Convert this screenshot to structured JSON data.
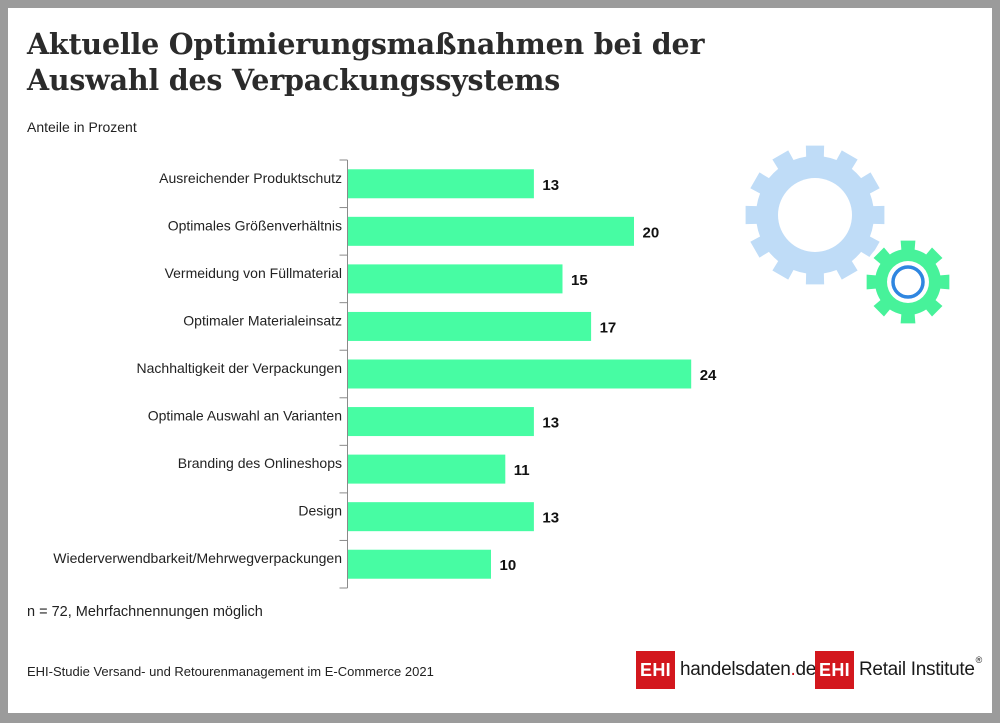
{
  "header": {
    "title_line1": "Aktuelle Optimierungsmaßnahmen bei der",
    "title_line2": "Auswahl des Verpackungssystems",
    "subtitle": "Anteile in Prozent"
  },
  "footer": {
    "note": "n = 72, Mehrfachnennungen möglich",
    "source": "EHI-Studie Versand- und Retourenmanagement im E-Commerce 2021",
    "logo1": {
      "badge": "EHI",
      "text_before_dot": "handelsdaten",
      "dot": ".",
      "text_after_dot": "de"
    },
    "logo2": {
      "badge": "EHI",
      "text": "Retail Institute",
      "registered": "®"
    }
  },
  "decor": {
    "large_gear_icon": "gear-icon",
    "small_gear_icon": "gear-icon"
  },
  "colors": {
    "bar": "#47fca3",
    "axis": "#8a8a8a",
    "large_gear": "#bfdcf7",
    "small_gear": "#47f29a",
    "small_gear_ring": "#2f86e0",
    "brand_red": "#d3171d"
  },
  "chart_data": {
    "type": "bar",
    "orientation": "horizontal",
    "title": "Aktuelle Optimierungsmaßnahmen bei der Auswahl des Verpackungssystems",
    "subtitle": "Anteile in Prozent",
    "xlabel": "",
    "ylabel": "",
    "unit": "%",
    "categories": [
      "Ausreichender Produktschutz",
      "Optimales Größenverhältnis",
      "Vermeidung von Füllmaterial",
      "Optimaler Materialeinsatz",
      "Nachhaltigkeit der Verpackungen",
      "Optimale Auswahl an Varianten",
      "Branding des Onlineshops",
      "Design",
      "Wiederverwendbarkeit/Mehrwegverpackungen"
    ],
    "values": [
      13,
      20,
      15,
      17,
      24,
      13,
      11,
      13,
      10
    ],
    "xlim": [
      0,
      24
    ],
    "grid": false,
    "legend": "none",
    "data_labels": true
  }
}
